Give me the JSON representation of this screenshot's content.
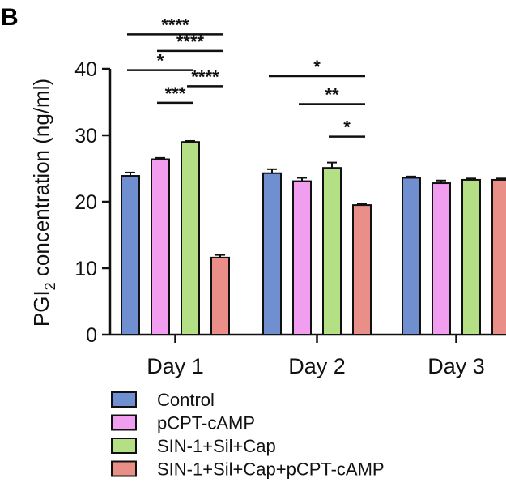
{
  "panel_label": "B",
  "chart_data": {
    "type": "bar",
    "ylabel_main": "PGI",
    "ylabel_sub": "2",
    "ylabel_rest": " concentration (ng/ml)",
    "ylim": [
      0,
      40
    ],
    "yticks": [
      0,
      10,
      20,
      30,
      40
    ],
    "categories": [
      "Day 1",
      "Day 2",
      "Day 3"
    ],
    "series": [
      {
        "name": "Control",
        "color": "#6f8fd0",
        "values": [
          23.9,
          24.3,
          23.6
        ],
        "errors": [
          0.5,
          0.6,
          0.2
        ]
      },
      {
        "name": "pCPT-cAMP",
        "color": "#f19ef0",
        "values": [
          26.4,
          23.1,
          22.8
        ],
        "errors": [
          0.2,
          0.5,
          0.4
        ]
      },
      {
        "name": "SIN-1+Sil+Cap",
        "color": "#b5df84",
        "values": [
          29.0,
          25.1,
          23.3
        ],
        "errors": [
          0.15,
          0.8,
          0.2
        ]
      },
      {
        "name": "SIN-1+Sil+Cap+pCPT-cAMP",
        "color": "#e98f88",
        "values": [
          11.6,
          19.5,
          23.3
        ],
        "errors": [
          0.4,
          0.2,
          0.2
        ]
      }
    ],
    "significance": [
      {
        "category": 0,
        "from": 0,
        "to": 3,
        "label": "****",
        "y": 45.2
      },
      {
        "category": 0,
        "from": 1,
        "to": 3,
        "label": "****",
        "y": 42.7
      },
      {
        "category": 0,
        "from": 0,
        "to": 2,
        "label": "*",
        "y": 39.8
      },
      {
        "category": 0,
        "from": 2,
        "to": 3,
        "label": "****",
        "y": 37.4
      },
      {
        "category": 0,
        "from": 1,
        "to": 2,
        "label": "***",
        "y": 34.9
      },
      {
        "category": 1,
        "from": 0,
        "to": 3,
        "label": "*",
        "y": 38.9
      },
      {
        "category": 1,
        "from": 1,
        "to": 3,
        "label": "**",
        "y": 34.7
      },
      {
        "category": 1,
        "from": 2,
        "to": 3,
        "label": "*",
        "y": 29.8
      }
    ],
    "legend_position": "bottom"
  }
}
